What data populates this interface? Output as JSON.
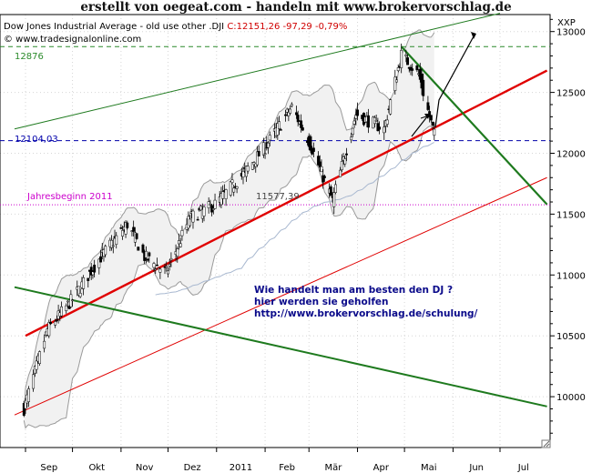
{
  "banner": "erstellt von oegeat.com  - handeln mit  www.brokervorschlag.de",
  "legend": {
    "series_prefix": "Dow Jones Industrial Average - old use other .DJI ",
    "series_quote": "C:12151,26 -97,29 -0,79%",
    "copyright": "© www.tradesignalonline.com"
  },
  "axis_unit": "XXP",
  "colors": {
    "candle_up": "#ffffff",
    "candle_down": "#000000",
    "bollinger_band": "#9a9a9a",
    "moving_average": "#a8b8d0",
    "red_trend": "#e00000",
    "green_trend": "#1e7a1e",
    "level_12876": "#2a8a2a",
    "level_12104": "#0000aa",
    "level_11577": "#cc00cc",
    "note_text": "#0a0a8a"
  },
  "annotations": {
    "level_high": "12876",
    "level_support": "12104,03",
    "year_start": "Jahresbeginn 2011",
    "low_value": "11577,39",
    "note": [
      "Wie handelt man am besten  den DJ ?",
      "hier werden sie geholfen",
      "http://www.brokervorschlag.de/schulung/"
    ]
  },
  "chart_data": {
    "type": "line",
    "title": "Dow Jones Industrial Average - old use other .DJI",
    "xlabel": "",
    "ylabel": "",
    "x_ticks": [
      "Sep",
      "Okt",
      "Nov",
      "Dez",
      "2011",
      "Feb",
      "Mär",
      "Apr",
      "Mai",
      "Jun",
      "Jul"
    ],
    "y_ticks": [
      10000,
      10500,
      11000,
      11500,
      12000,
      12500,
      13000
    ],
    "ylim": [
      9600,
      13150
    ],
    "grid": true,
    "series": [
      {
        "name": "Dow Jones Industrial Average",
        "kind": "candlestick",
        "date_range": [
          "2010-08-31",
          "2011-05-20"
        ],
        "points": [
          [
            "2010-08-31",
            9900
          ],
          [
            "2010-09-15",
            10550
          ],
          [
            "2010-10-01",
            10800
          ],
          [
            "2010-10-18",
            11130
          ],
          [
            "2010-11-05",
            11420
          ],
          [
            "2010-11-16",
            11150
          ],
          [
            "2010-11-30",
            11020
          ],
          [
            "2010-12-15",
            11470
          ],
          [
            "2010-12-31",
            11580
          ],
          [
            "2011-01-18",
            11830
          ],
          [
            "2011-02-01",
            12050
          ],
          [
            "2011-02-18",
            12380
          ],
          [
            "2011-03-01",
            12100
          ],
          [
            "2011-03-16",
            11610
          ],
          [
            "2011-03-31",
            12320
          ],
          [
            "2011-04-18",
            12200
          ],
          [
            "2011-04-29",
            12810
          ],
          [
            "2011-05-10",
            12650
          ],
          [
            "2011-05-20",
            12151
          ]
        ]
      }
    ],
    "horizontal_levels": [
      {
        "label": "12876",
        "value": 12876
      },
      {
        "label": "12104,03",
        "value": 12104
      },
      {
        "label": "Jahresbeginn 2011",
        "value": 11577
      }
    ],
    "trend_lines": [
      {
        "kind": "support",
        "color": "red",
        "points": [
          [
            "2010-09-01",
            10500
          ],
          [
            "2011-07-31",
            12680
          ]
        ]
      },
      {
        "kind": "channel",
        "color": "red",
        "points": [
          [
            "2010-08-25",
            9850
          ],
          [
            "2011-07-31",
            11800
          ]
        ]
      },
      {
        "kind": "resistance",
        "color": "green",
        "points": [
          [
            "2011-04-29",
            12876
          ],
          [
            "2011-07-31",
            11580
          ]
        ]
      },
      {
        "kind": "channel",
        "color": "green",
        "points": [
          [
            "2010-08-25",
            10900
          ],
          [
            "2011-07-31",
            9920
          ]
        ]
      },
      {
        "kind": "channel",
        "color": "green",
        "points": [
          [
            "2010-08-25",
            12200
          ],
          [
            "2011-07-01",
            13150
          ]
        ]
      }
    ]
  }
}
